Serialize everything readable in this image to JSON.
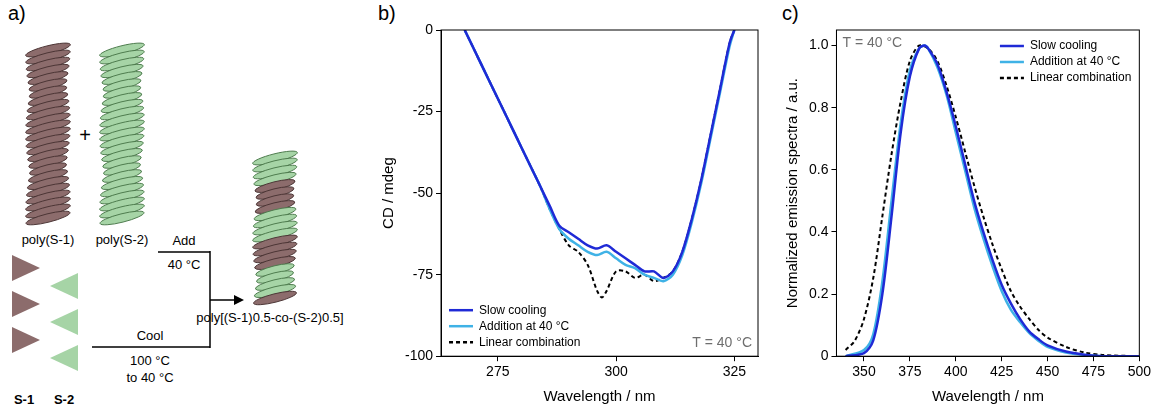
{
  "diagram": {
    "panel": "a)",
    "polymers": [
      {
        "label": "poly(S-1)"
      },
      {
        "label": "poly(S-2)"
      }
    ],
    "plus": "+",
    "add": {
      "label": "Add",
      "condition": "40 °C"
    },
    "cool": {
      "label": "Cool",
      "condition": [
        "100 °C",
        "to 40 °C"
      ]
    },
    "product": {
      "label": "poly[(S-1)0.5-co-(S-2)0.5]"
    },
    "monomers": [
      {
        "label": "S-1"
      },
      {
        "label": "S-2"
      }
    ]
  },
  "chart_data": [
    {
      "panel": "b)",
      "type": "line",
      "x_label": "Wavelength / nm",
      "y_label": "CD / mdeg",
      "annotations": [
        "T = 40 °C"
      ],
      "xlim": [
        263,
        330
      ],
      "xticks": [
        275,
        300,
        325
      ],
      "ylim": [
        -100,
        0
      ],
      "yticks": [
        -100,
        -75,
        -50,
        -25,
        0
      ],
      "grid": false,
      "legend": "bottom left",
      "series": [
        {
          "name": "Slow cooling",
          "color": "#1f2ad6",
          "line_style": "solid",
          "x": [
            268,
            270,
            272,
            274,
            276,
            278,
            280,
            282,
            284,
            286,
            288,
            290,
            292,
            294,
            296,
            298,
            300,
            302,
            304,
            306,
            308,
            310,
            312,
            314,
            316,
            318,
            320,
            322,
            324,
            325
          ],
          "values": [
            0,
            -6,
            -12,
            -18,
            -24,
            -30,
            -36,
            -42,
            -48,
            -54,
            -60,
            -62,
            -64,
            -66,
            -67,
            -66,
            -68,
            -70,
            -72,
            -74,
            -74,
            -76,
            -74,
            -68,
            -58,
            -46,
            -32,
            -18,
            -4,
            0
          ]
        },
        {
          "name": "Addition at 40 °C",
          "color": "#3fb2e6",
          "line_style": "solid",
          "x": [
            268,
            270,
            272,
            274,
            276,
            278,
            280,
            282,
            284,
            286,
            288,
            290,
            292,
            294,
            296,
            298,
            300,
            302,
            304,
            306,
            308,
            310,
            312,
            314,
            316,
            318,
            320,
            322,
            324,
            325
          ],
          "values": [
            0,
            -6,
            -12,
            -18,
            -24,
            -30,
            -36,
            -42,
            -48,
            -55,
            -61,
            -64,
            -66,
            -68,
            -69,
            -68,
            -70,
            -72,
            -73,
            -75,
            -76,
            -77,
            -75,
            -69,
            -59,
            -47,
            -33,
            -19,
            -5,
            0
          ]
        },
        {
          "name": "Linear combination",
          "color": "#000000",
          "line_style": "dotted",
          "x": [
            268,
            270,
            272,
            274,
            276,
            278,
            280,
            282,
            284,
            286,
            288,
            290,
            292,
            294,
            296,
            297,
            298,
            300,
            302,
            304,
            306,
            308,
            310,
            312,
            314,
            316,
            318,
            320,
            322,
            324,
            325
          ],
          "values": [
            0,
            -6,
            -12,
            -18,
            -24,
            -30,
            -36,
            -42,
            -48,
            -55,
            -61,
            -66,
            -68,
            -72,
            -80,
            -82,
            -80,
            -74,
            -74,
            -76,
            -75,
            -77,
            -76,
            -74,
            -68,
            -58,
            -46,
            -32,
            -18,
            -4,
            0
          ]
        }
      ]
    },
    {
      "panel": "c)",
      "type": "line",
      "x_label": "Wavelength / nm",
      "y_label": "Normalized emission spectra / a.u.",
      "annotations": [
        "T = 40 °C"
      ],
      "xlim": [
        335,
        500
      ],
      "xticks": [
        350,
        375,
        400,
        425,
        450,
        475,
        500
      ],
      "ylim": [
        0,
        1.05
      ],
      "yticks": [
        0,
        0.2,
        0.4,
        0.6,
        0.8,
        {
          "value": 1,
          "label": "1.0"
        }
      ],
      "grid": false,
      "legend": "top right",
      "series": [
        {
          "name": "Slow cooling",
          "color": "#1f2ad6",
          "line_style": "solid",
          "x": [
            340,
            350,
            355,
            360,
            365,
            370,
            375,
            380,
            383,
            385,
            390,
            395,
            400,
            405,
            410,
            415,
            420,
            425,
            430,
            435,
            440,
            445,
            450,
            460,
            470,
            480,
            500
          ],
          "values": [
            0,
            0.01,
            0.05,
            0.2,
            0.45,
            0.72,
            0.9,
            0.99,
            1.0,
            0.99,
            0.94,
            0.85,
            0.74,
            0.62,
            0.5,
            0.4,
            0.31,
            0.23,
            0.17,
            0.12,
            0.08,
            0.055,
            0.035,
            0.015,
            0.005,
            0,
            0
          ]
        },
        {
          "name": "Addition at 40 °C",
          "color": "#3fb2e6",
          "line_style": "solid",
          "x": [
            340,
            350,
            355,
            360,
            365,
            370,
            375,
            380,
            383,
            385,
            390,
            395,
            400,
            405,
            410,
            415,
            420,
            425,
            430,
            435,
            440,
            445,
            450,
            460,
            470,
            480,
            500
          ],
          "values": [
            0,
            0.02,
            0.07,
            0.24,
            0.5,
            0.75,
            0.92,
            0.99,
            1.0,
            0.99,
            0.93,
            0.84,
            0.72,
            0.6,
            0.48,
            0.38,
            0.29,
            0.21,
            0.15,
            0.11,
            0.075,
            0.05,
            0.03,
            0.012,
            0.004,
            0,
            0
          ]
        },
        {
          "name": "Linear combination",
          "color": "#000000",
          "line_style": "dotted",
          "x": [
            340,
            345,
            350,
            355,
            360,
            365,
            370,
            375,
            380,
            385,
            390,
            395,
            400,
            405,
            410,
            415,
            420,
            425,
            430,
            435,
            440,
            445,
            450,
            460,
            470,
            480,
            500
          ],
          "values": [
            0.02,
            0.05,
            0.12,
            0.25,
            0.45,
            0.65,
            0.82,
            0.95,
            1.0,
            0.99,
            0.95,
            0.87,
            0.77,
            0.66,
            0.55,
            0.45,
            0.36,
            0.28,
            0.21,
            0.16,
            0.12,
            0.085,
            0.06,
            0.03,
            0.012,
            0.004,
            0
          ]
        }
      ]
    }
  ]
}
